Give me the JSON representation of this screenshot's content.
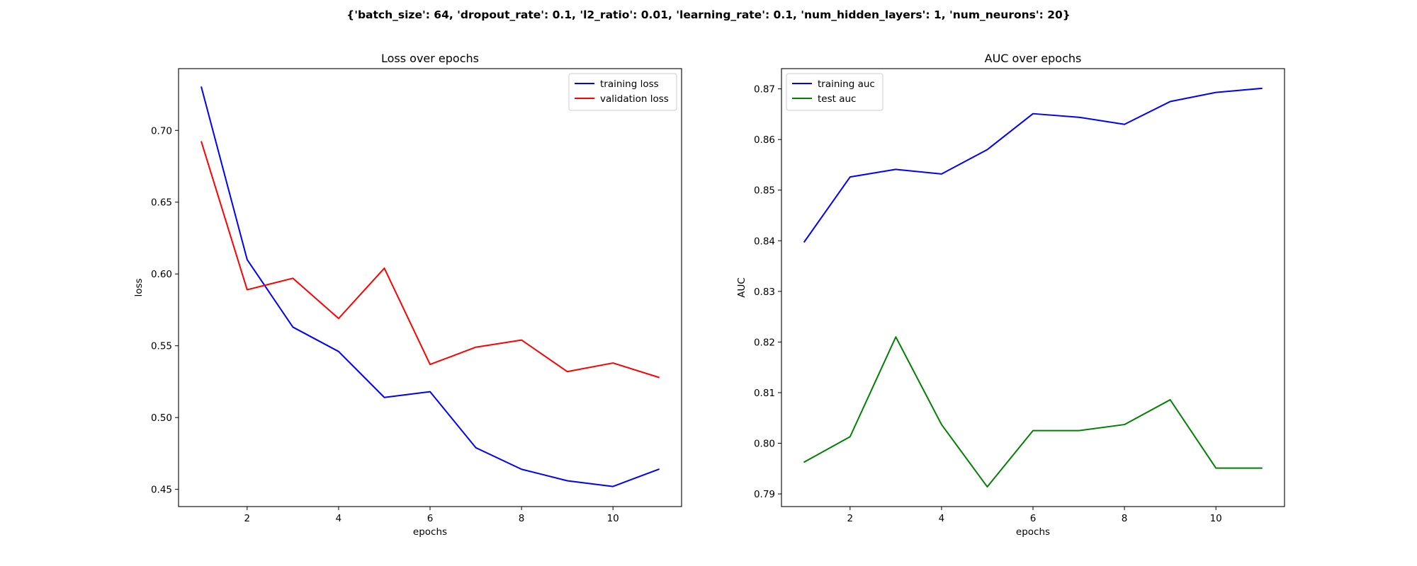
{
  "figure": {
    "suptitle": "{'batch_size': 64, 'dropout_rate': 0.1, 'l2_ratio': 0.01, 'learning_rate': 0.1, 'num_hidden_layers': 1, 'num_neurons': 20}"
  },
  "chart_data": [
    {
      "type": "line",
      "title": "Loss over epochs",
      "xlabel": "epochs",
      "ylabel": "loss",
      "x": [
        1,
        2,
        3,
        4,
        5,
        6,
        7,
        8,
        9,
        10,
        11
      ],
      "xlim": [
        0.5,
        11.5
      ],
      "ylim": [
        0.438,
        0.743
      ],
      "xticks": [
        2,
        4,
        6,
        8,
        10
      ],
      "yticks": [
        0.45,
        0.5,
        0.55,
        0.6,
        0.65,
        0.7
      ],
      "ytick_labels": [
        "0.45",
        "0.50",
        "0.55",
        "0.60",
        "0.65",
        "0.70"
      ],
      "grid": false,
      "legend_position": "upper right",
      "series": [
        {
          "name": "training loss",
          "color": "#0000ff",
          "values": [
            0.73,
            0.61,
            0.563,
            0.546,
            0.514,
            0.518,
            0.479,
            0.464,
            0.456,
            0.452,
            0.464
          ]
        },
        {
          "name": "validation loss",
          "color": "#ff0000",
          "values": [
            0.692,
            0.589,
            0.597,
            0.569,
            0.604,
            0.537,
            0.549,
            0.554,
            0.532,
            0.538,
            0.528
          ]
        }
      ]
    },
    {
      "type": "line",
      "title": "AUC over epochs",
      "xlabel": "epochs",
      "ylabel": "AUC",
      "x": [
        1,
        2,
        3,
        4,
        5,
        6,
        7,
        8,
        9,
        10,
        11
      ],
      "xlim": [
        0.5,
        11.5
      ],
      "ylim": [
        0.7875,
        0.874
      ],
      "xticks": [
        2,
        4,
        6,
        8,
        10
      ],
      "yticks": [
        0.79,
        0.8,
        0.81,
        0.82,
        0.83,
        0.84,
        0.85,
        0.86,
        0.87
      ],
      "ytick_labels": [
        "0.79",
        "0.80",
        "0.81",
        "0.82",
        "0.83",
        "0.84",
        "0.85",
        "0.86",
        "0.87"
      ],
      "grid": false,
      "legend_position": "upper left",
      "series": [
        {
          "name": "training auc",
          "color": "#0000ff",
          "values": [
            0.8398,
            0.8526,
            0.8541,
            0.8532,
            0.858,
            0.8651,
            0.8644,
            0.863,
            0.8675,
            0.8693,
            0.8701
          ]
        },
        {
          "name": "test auc",
          "color": "#008000",
          "values": [
            0.7963,
            0.8013,
            0.821,
            0.8037,
            0.7914,
            0.8025,
            0.8025,
            0.8037,
            0.8086,
            0.7951,
            0.7951
          ]
        }
      ]
    }
  ]
}
